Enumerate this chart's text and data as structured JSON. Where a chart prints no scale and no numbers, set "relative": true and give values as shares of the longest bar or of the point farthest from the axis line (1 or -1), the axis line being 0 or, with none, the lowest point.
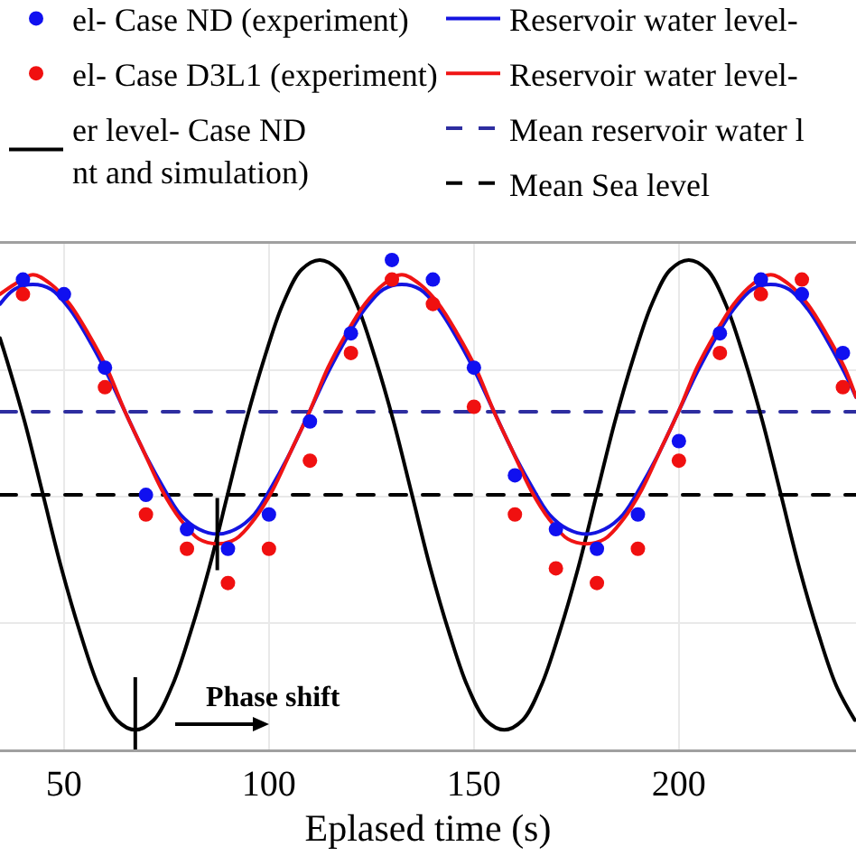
{
  "chart_data": {
    "type": "line",
    "xlabel": "Eplased time (s)",
    "xlim": [
      34.4,
      243.2
    ],
    "xticks": [
      50,
      100,
      150,
      200
    ],
    "relative": true,
    "grid": true,
    "legend": "top",
    "annotations": [
      "Phase shift"
    ],
    "series": [
      {
        "name": "el- Case ND (experiment)",
        "type": "scatter",
        "marker": "circle",
        "color": "#1010f0",
        "x": [
          40,
          50,
          60,
          70,
          80,
          90,
          100,
          110,
          120,
          130,
          140,
          150,
          160,
          170,
          180,
          190,
          200,
          210,
          220,
          230,
          240
        ],
        "values": [
          0.96,
          0.93,
          0.78,
          0.52,
          0.45,
          0.41,
          0.48,
          0.67,
          0.85,
          1.0,
          0.96,
          0.78,
          0.56,
          0.45,
          0.41,
          0.48,
          0.63,
          0.85,
          0.96,
          0.93,
          0.81
        ]
      },
      {
        "name": "el- Case D3L1 (experiment)",
        "type": "scatter",
        "marker": "circle",
        "color": "#f01010",
        "x": [
          40,
          50,
          60,
          70,
          80,
          90,
          100,
          110,
          120,
          130,
          140,
          150,
          160,
          170,
          180,
          190,
          200,
          210,
          220,
          230,
          240
        ],
        "values": [
          0.93,
          null,
          0.74,
          0.48,
          0.41,
          0.34,
          0.41,
          0.59,
          0.81,
          0.96,
          0.91,
          0.7,
          0.48,
          0.37,
          0.34,
          0.41,
          0.59,
          0.81,
          0.93,
          0.96,
          0.74
        ]
      },
      {
        "name": "er level- Case ND\nnt and simulation)",
        "color": "#000000",
        "x": [
          34.4,
          35.9,
          40.4,
          44.9,
          49.4,
          53.9,
          58.4,
          62.9,
          67.4,
          71.9,
          76.4,
          80.9,
          85.4,
          89.9,
          94.4,
          98.9,
          103.4,
          107.9,
          112.4,
          116.9,
          121.4,
          125.9,
          130.4,
          134.9,
          139.4,
          143.9,
          148.4,
          152.9,
          157.4,
          161.9,
          166.4,
          170.9,
          175.4,
          179.9,
          184.4,
          188.9,
          193.4,
          197.9,
          202.4,
          206.9,
          211.4,
          215.9,
          220.4,
          224.9,
          229.4,
          233.9,
          238.4,
          242.9
        ],
        "values": [
          0.84,
          0.8,
          0.67,
          0.52,
          0.37,
          0.24,
          0.13,
          0.06,
          0.04,
          0.06,
          0.13,
          0.24,
          0.37,
          0.52,
          0.67,
          0.8,
          0.91,
          0.98,
          1.0,
          0.98,
          0.91,
          0.8,
          0.67,
          0.52,
          0.37,
          0.24,
          0.13,
          0.06,
          0.04,
          0.06,
          0.13,
          0.24,
          0.37,
          0.52,
          0.67,
          0.8,
          0.91,
          0.98,
          1.0,
          0.98,
          0.91,
          0.8,
          0.67,
          0.52,
          0.37,
          0.24,
          0.13,
          0.06
        ]
      },
      {
        "name": "Reservoir water level-",
        "color": "#1414e0",
        "x": [
          34.4,
          37.9,
          42.4,
          46.9,
          51.4,
          55.9,
          60.4,
          64.9,
          69.4,
          73.9,
          78.4,
          82.9,
          87.4,
          91.9,
          96.4,
          100.9,
          105.4,
          109.9,
          114.4,
          118.9,
          123.4,
          127.9,
          132.4,
          136.9,
          141.4,
          145.9,
          150.4,
          154.9,
          159.4,
          163.9,
          168.4,
          172.9,
          177.4,
          181.9,
          186.4,
          190.9,
          195.4,
          199.9,
          204.4,
          208.9,
          213.4,
          217.9,
          222.4,
          226.9,
          231.4,
          235.9,
          240.4,
          243.2
        ],
        "values": [
          0.91,
          0.94,
          0.95,
          0.94,
          0.9,
          0.84,
          0.77,
          0.69,
          0.61,
          0.54,
          0.48,
          0.45,
          0.44,
          0.45,
          0.48,
          0.54,
          0.61,
          0.69,
          0.77,
          0.84,
          0.9,
          0.94,
          0.95,
          0.94,
          0.9,
          0.84,
          0.77,
          0.69,
          0.61,
          0.54,
          0.48,
          0.45,
          0.44,
          0.45,
          0.48,
          0.54,
          0.61,
          0.69,
          0.77,
          0.84,
          0.9,
          0.94,
          0.95,
          0.94,
          0.9,
          0.84,
          0.77,
          0.72
        ]
      },
      {
        "name": "Reservoir water level-",
        "color": "#f01414",
        "x": [
          34.4,
          37.9,
          42.4,
          46.9,
          51.4,
          55.9,
          60.4,
          64.9,
          69.4,
          73.9,
          78.4,
          82.9,
          87.4,
          91.9,
          96.4,
          100.9,
          105.4,
          109.9,
          114.4,
          118.9,
          123.4,
          127.9,
          132.4,
          136.9,
          141.4,
          145.9,
          150.4,
          154.9,
          159.4,
          163.9,
          168.4,
          172.9,
          177.4,
          181.9,
          186.4,
          190.9,
          195.4,
          199.9,
          204.4,
          208.9,
          213.4,
          217.9,
          222.4,
          226.9,
          231.4,
          235.9,
          240.4,
          243.2
        ],
        "values": [
          0.93,
          0.95,
          0.97,
          0.95,
          0.91,
          0.85,
          0.78,
          0.69,
          0.61,
          0.53,
          0.47,
          0.43,
          0.42,
          0.43,
          0.47,
          0.53,
          0.61,
          0.69,
          0.78,
          0.85,
          0.91,
          0.95,
          0.97,
          0.95,
          0.91,
          0.85,
          0.78,
          0.69,
          0.61,
          0.53,
          0.47,
          0.43,
          0.42,
          0.43,
          0.47,
          0.53,
          0.61,
          0.69,
          0.78,
          0.85,
          0.91,
          0.95,
          0.97,
          0.95,
          0.91,
          0.85,
          0.78,
          0.72
        ]
      }
    ],
    "ref_lines": [
      {
        "axis": "y",
        "value": 0.69,
        "label": "Mean reservoir water l",
        "color": "#2e2ea0",
        "line_style": "dashed"
      },
      {
        "axis": "y",
        "value": 0.52,
        "label": "Mean Sea level",
        "color": "#000000",
        "line_style": "dashed"
      }
    ]
  }
}
